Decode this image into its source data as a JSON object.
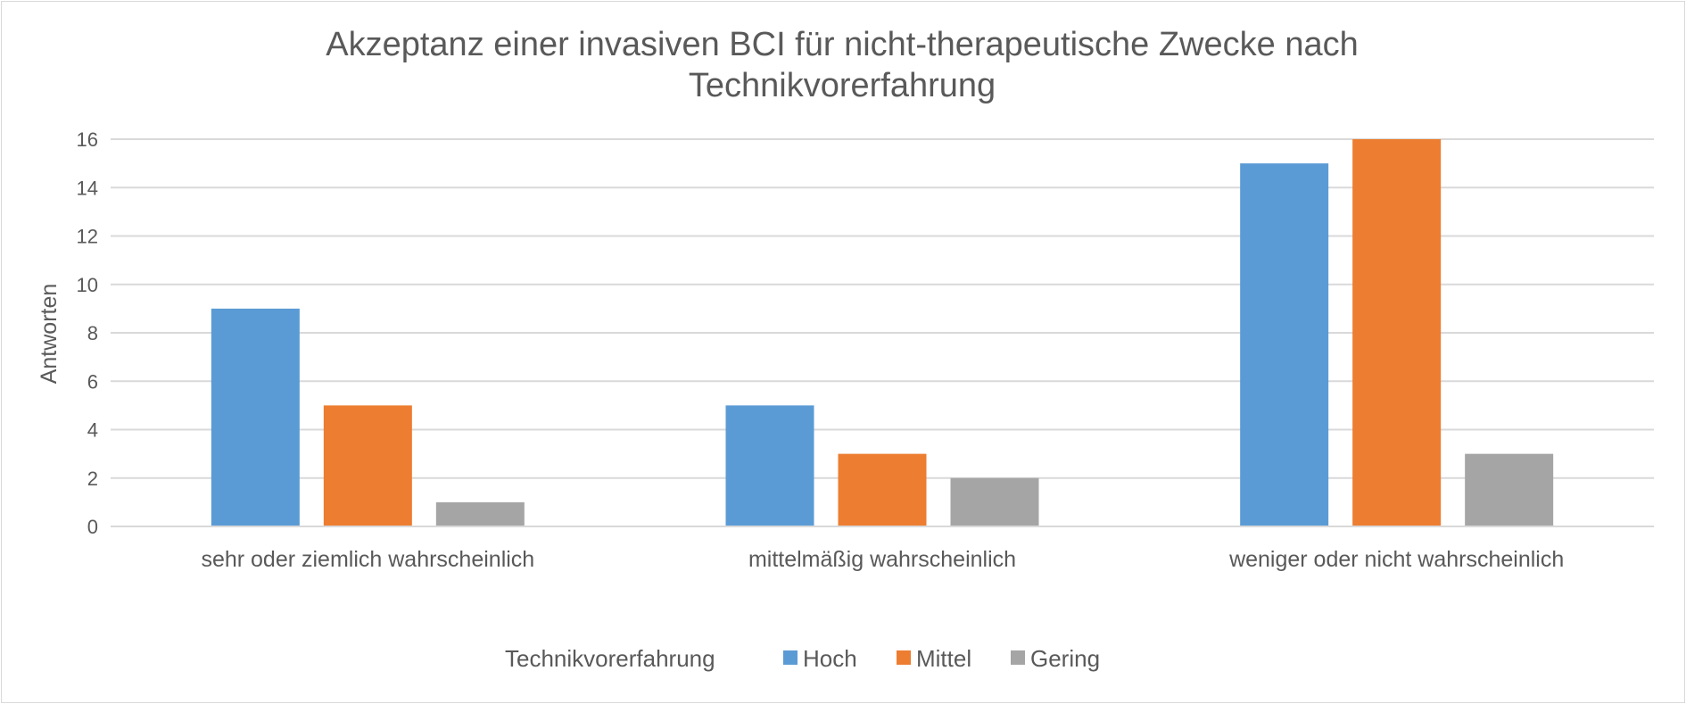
{
  "chart_data": {
    "type": "bar",
    "title_lines": [
      "Akzeptanz einer invasiven BCI für nicht-therapeutische Zwecke nach",
      "Technikvorerfahrung"
    ],
    "xlabel": "",
    "ylabel": "Antworten",
    "ylim": [
      0,
      16
    ],
    "yticks": [
      "0",
      "2",
      "4",
      "6",
      "8",
      "10",
      "12",
      "14",
      "16"
    ],
    "grid": true,
    "categories": [
      "sehr oder ziemlich wahrscheinlich",
      "mittelmäßig wahrscheinlich",
      "weniger oder nicht wahrscheinlich"
    ],
    "legend_title": "Technikvorerfahrung",
    "legend_position": "bottom",
    "series": [
      {
        "name": "Hoch",
        "color": "#5b9bd5",
        "values": [
          9,
          5,
          15
        ]
      },
      {
        "name": "Mittel",
        "color": "#ed7d31",
        "values": [
          5,
          3,
          16
        ]
      },
      {
        "name": "Gering",
        "color": "#a5a5a5",
        "values": [
          1,
          2,
          3
        ]
      }
    ]
  }
}
